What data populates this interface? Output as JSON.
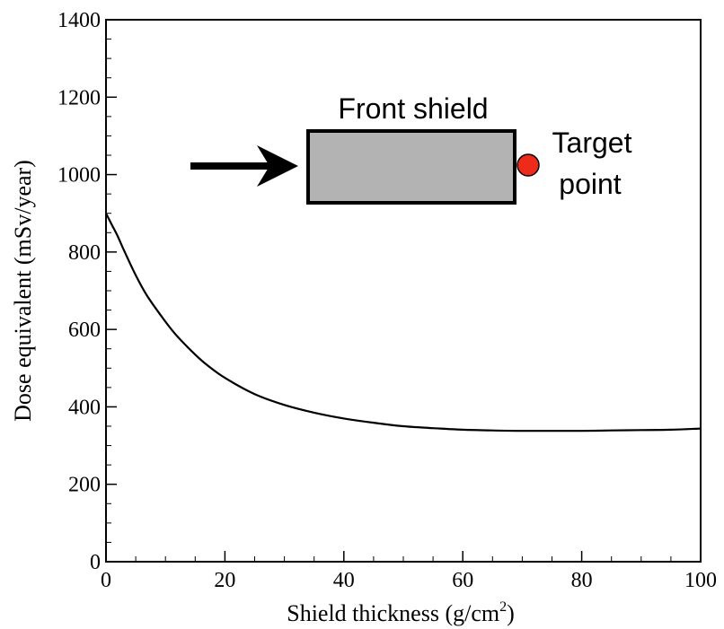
{
  "chart_data": {
    "type": "line",
    "xlabel_main": "Shield thickness (g/cm",
    "xlabel_sup": "2",
    "xlabel_close": ")",
    "ylabel": "Dose equivalent (mSv/year)",
    "xlim": [
      0,
      100
    ],
    "ylim": [
      0,
      1400
    ],
    "x_ticks": [
      0,
      20,
      40,
      60,
      80,
      100
    ],
    "y_ticks": [
      0,
      200,
      400,
      600,
      800,
      1000,
      1200,
      1400
    ],
    "x_tick_labels": [
      "0",
      "20",
      "40",
      "60",
      "80",
      "100"
    ],
    "y_tick_labels": [
      "0",
      "200",
      "400",
      "600",
      "800",
      "1000",
      "1200",
      "1400"
    ],
    "grid": false,
    "series": [
      {
        "color": "#000000",
        "x": [
          0,
          1,
          2,
          3,
          5,
          7,
          10,
          12,
          15,
          17,
          20,
          25,
          30,
          35,
          40,
          45,
          50,
          55,
          60,
          65,
          70,
          75,
          80,
          85,
          90,
          95,
          100
        ],
        "y": [
          900,
          870,
          840,
          805,
          740,
          685,
          620,
          582,
          535,
          508,
          475,
          433,
          405,
          385,
          370,
          359,
          350,
          345,
          341,
          339,
          338,
          338,
          338,
          339,
          340,
          341,
          344
        ]
      }
    ],
    "inset": {
      "shield_label": "Front shield",
      "target_label_line1": "Target",
      "target_label_line2": "point",
      "shield_fill": "#b3b3b3",
      "target_color": "#ee2a1b"
    }
  }
}
